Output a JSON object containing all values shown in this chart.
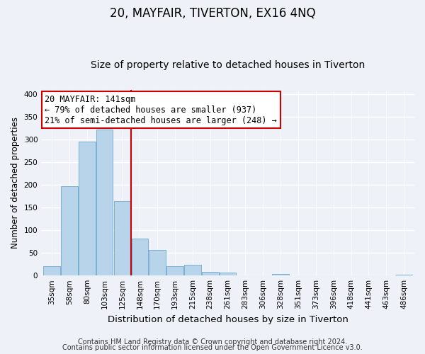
{
  "title": "20, MAYFAIR, TIVERTON, EX16 4NQ",
  "subtitle": "Size of property relative to detached houses in Tiverton",
  "xlabel": "Distribution of detached houses by size in Tiverton",
  "ylabel": "Number of detached properties",
  "categories": [
    "35sqm",
    "58sqm",
    "80sqm",
    "103sqm",
    "125sqm",
    "148sqm",
    "170sqm",
    "193sqm",
    "215sqm",
    "238sqm",
    "261sqm",
    "283sqm",
    "306sqm",
    "328sqm",
    "351sqm",
    "373sqm",
    "396sqm",
    "418sqm",
    "441sqm",
    "463sqm",
    "486sqm"
  ],
  "values": [
    20,
    197,
    296,
    322,
    165,
    82,
    57,
    21,
    23,
    8,
    6,
    0,
    0,
    4,
    0,
    0,
    0,
    0,
    0,
    0,
    2
  ],
  "bar_color": "#b8d4ea",
  "bar_edge_color": "#7ab0d4",
  "vline_x": 5.0,
  "vline_color": "#cc0000",
  "annotation_line1": "20 MAYFAIR: 141sqm",
  "annotation_line2": "← 79% of detached houses are smaller (937)",
  "annotation_line3": "21% of semi-detached houses are larger (248) →",
  "annotation_box_color": "#ffffff",
  "annotation_box_edge": "#cc0000",
  "ylim": [
    0,
    410
  ],
  "yticks": [
    0,
    50,
    100,
    150,
    200,
    250,
    300,
    350,
    400
  ],
  "footer_line1": "Contains HM Land Registry data © Crown copyright and database right 2024.",
  "footer_line2": "Contains public sector information licensed under the Open Government Licence v3.0.",
  "bg_color": "#eef2f8",
  "title_fontsize": 12,
  "subtitle_fontsize": 10,
  "xlabel_fontsize": 9.5,
  "ylabel_fontsize": 8.5,
  "tick_fontsize": 7.5,
  "annotation_fontsize": 8.5,
  "footer_fontsize": 7
}
